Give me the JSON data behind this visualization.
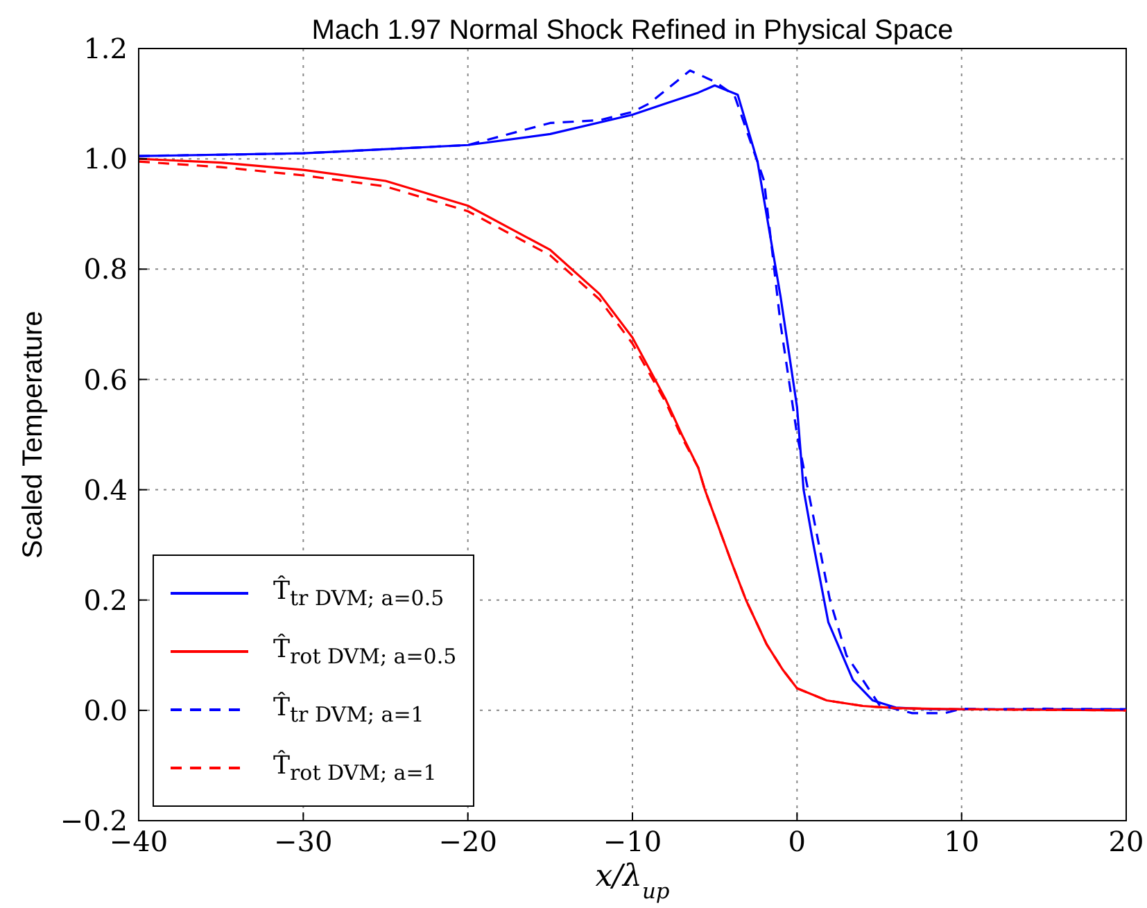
{
  "chart_data": {
    "type": "line",
    "title": "Mach 1.97 Normal Shock Refined in Physical Space",
    "xlabel": "x/λ$_{up}$",
    "ylabel": "Scaled Temperature",
    "xlim": [
      -40,
      20
    ],
    "xticks": [
      -40,
      -30,
      -20,
      -10,
      0,
      10,
      20
    ],
    "ylim": [
      -0.2,
      1.2
    ],
    "yticks": [
      -0.2,
      {
        "value": 0,
        "label": "0.0"
      },
      0.2,
      0.4,
      0.6,
      0.8,
      {
        "value": 1,
        "label": "1.0"
      },
      1.2
    ],
    "grid": true,
    "legend": "bottom left",
    "marker": "none",
    "series": [
      {
        "name": "T̂$_{tr DVM; a=0.5}$",
        "color": "#0000ff",
        "line_style": "solid",
        "x": [
          -40,
          -30,
          -20,
          -15,
          -10,
          -8,
          -6,
          -5,
          -3.6,
          -2.4,
          -1,
          0,
          0.4,
          1,
          1.9,
          3.4,
          4.6,
          6,
          8,
          10,
          15,
          20
        ],
        "values": [
          1.005,
          1.01,
          1.025,
          1.045,
          1.08,
          1.1,
          1.12,
          1.133,
          1.116,
          0.995,
          0.75,
          0.55,
          0.4,
          0.3,
          0.16,
          0.055,
          0.018,
          0.005,
          0.002,
          0.002,
          0.002,
          0.002
        ]
      },
      {
        "name": "T̂$_{rot DVM; a=0.5}$",
        "color": "#ff0000",
        "line_style": "solid",
        "x": [
          -40,
          -35,
          -30,
          -25,
          -20,
          -15,
          -12,
          -10,
          -8,
          -7,
          -6,
          -5.6,
          -4,
          -3.1,
          -1.85,
          -0.85,
          0,
          1.8,
          4,
          6,
          10,
          20
        ],
        "values": [
          1.0,
          0.993,
          0.98,
          0.96,
          0.915,
          0.835,
          0.755,
          0.676,
          0.565,
          0.5,
          0.44,
          0.4,
          0.27,
          0.2,
          0.12,
          0.073,
          0.04,
          0.018,
          0.008,
          0.004,
          0.002,
          0.0
        ]
      },
      {
        "name": "T̂$_{tr DVM; a=1}$",
        "color": "#0000ff",
        "line_style": "dashed",
        "x": [
          -40,
          -30,
          -20,
          -15,
          -12,
          -10,
          -9,
          -6.5,
          -5,
          -3.8,
          -2,
          -1,
          0,
          1,
          2,
          3,
          5,
          7,
          9,
          10,
          12,
          15,
          20
        ],
        "values": [
          1.005,
          1.01,
          1.025,
          1.065,
          1.07,
          1.085,
          1.1,
          1.16,
          1.14,
          1.115,
          0.96,
          0.7,
          0.5,
          0.35,
          0.2,
          0.1,
          0.01,
          -0.005,
          -0.005,
          0.003,
          0.002,
          0.003,
          0.002
        ]
      },
      {
        "name": "T̂$_{rot DVM; a=1}$",
        "color": "#ff0000",
        "line_style": "dashed",
        "x": [
          -40,
          -35,
          -30,
          -25,
          -20,
          -15,
          -12,
          -10,
          -8,
          -7,
          -6,
          -5.6,
          -4,
          -3.1,
          -1.85,
          -0.85,
          0,
          1.8,
          4,
          6,
          10,
          20
        ],
        "values": [
          0.995,
          0.985,
          0.97,
          0.95,
          0.905,
          0.825,
          0.745,
          0.665,
          0.56,
          0.495,
          0.44,
          0.4,
          0.27,
          0.2,
          0.12,
          0.073,
          0.04,
          0.018,
          0.008,
          0.004,
          0.002,
          0.0
        ]
      }
    ]
  }
}
